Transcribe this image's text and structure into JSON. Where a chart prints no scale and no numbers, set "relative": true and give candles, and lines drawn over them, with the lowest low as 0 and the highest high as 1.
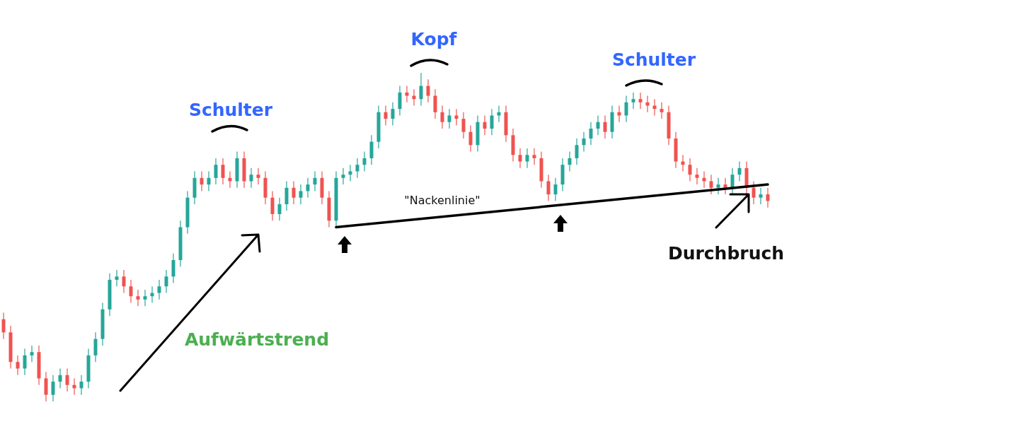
{
  "chart_data": {
    "type": "candlestick",
    "relative": true,
    "categories": [
      null,
      null,
      null,
      null,
      null,
      null,
      null,
      null,
      null,
      null,
      null,
      null,
      null,
      null,
      null,
      null,
      null,
      null,
      null,
      null,
      null,
      null,
      null,
      null,
      null,
      null,
      null,
      null,
      null,
      null,
      null,
      null,
      null,
      null,
      null,
      null,
      null,
      null,
      null,
      null,
      null,
      null,
      null,
      null,
      null,
      null,
      null,
      null,
      null,
      null,
      null,
      null,
      null,
      null,
      null,
      null,
      null,
      null,
      null,
      null,
      null,
      null,
      null,
      null,
      null,
      null,
      null,
      null,
      null,
      null,
      null,
      null,
      null,
      null,
      null,
      null,
      null,
      null,
      null,
      null,
      null,
      null,
      null,
      null,
      null,
      null,
      null,
      null,
      null,
      null,
      null,
      null,
      null,
      null,
      null,
      null,
      null,
      null,
      null,
      null,
      null,
      null,
      null,
      null,
      null,
      null,
      null,
      null,
      null
    ],
    "ohlc": [
      [
        0.25,
        0.27,
        0.19,
        0.21
      ],
      [
        0.21,
        0.23,
        0.1,
        0.12
      ],
      [
        0.12,
        0.14,
        0.08,
        0.1
      ],
      [
        0.1,
        0.16,
        0.08,
        0.14
      ],
      [
        0.14,
        0.17,
        0.12,
        0.15
      ],
      [
        0.15,
        0.17,
        0.05,
        0.07
      ],
      [
        0.07,
        0.09,
        0.0,
        0.02
      ],
      [
        0.02,
        0.08,
        0.0,
        0.06
      ],
      [
        0.06,
        0.1,
        0.04,
        0.08
      ],
      [
        0.08,
        0.1,
        0.03,
        0.05
      ],
      [
        0.05,
        0.07,
        0.02,
        0.04
      ],
      [
        0.04,
        0.08,
        0.02,
        0.06
      ],
      [
        0.06,
        0.16,
        0.04,
        0.14
      ],
      [
        0.14,
        0.21,
        0.12,
        0.19
      ],
      [
        0.19,
        0.3,
        0.17,
        0.28
      ],
      [
        0.28,
        0.39,
        0.26,
        0.37
      ],
      [
        0.37,
        0.4,
        0.35,
        0.38
      ],
      [
        0.38,
        0.4,
        0.33,
        0.35
      ],
      [
        0.35,
        0.37,
        0.3,
        0.32
      ],
      [
        0.32,
        0.34,
        0.29,
        0.31
      ],
      [
        0.31,
        0.34,
        0.29,
        0.32
      ],
      [
        0.32,
        0.35,
        0.3,
        0.33
      ],
      [
        0.33,
        0.37,
        0.31,
        0.35
      ],
      [
        0.35,
        0.4,
        0.33,
        0.38
      ],
      [
        0.38,
        0.45,
        0.36,
        0.43
      ],
      [
        0.43,
        0.55,
        0.41,
        0.53
      ],
      [
        0.53,
        0.64,
        0.51,
        0.62
      ],
      [
        0.62,
        0.7,
        0.6,
        0.68
      ],
      [
        0.68,
        0.7,
        0.64,
        0.66
      ],
      [
        0.66,
        0.7,
        0.64,
        0.68
      ],
      [
        0.68,
        0.74,
        0.66,
        0.72
      ],
      [
        0.72,
        0.74,
        0.66,
        0.68
      ],
      [
        0.68,
        0.7,
        0.65,
        0.67
      ],
      [
        0.67,
        0.76,
        0.65,
        0.74
      ],
      [
        0.74,
        0.76,
        0.65,
        0.67
      ],
      [
        0.67,
        0.71,
        0.65,
        0.69
      ],
      [
        0.69,
        0.71,
        0.66,
        0.68
      ],
      [
        0.68,
        0.7,
        0.6,
        0.62
      ],
      [
        0.62,
        0.64,
        0.55,
        0.57
      ],
      [
        0.57,
        0.62,
        0.55,
        0.6
      ],
      [
        0.6,
        0.67,
        0.58,
        0.65
      ],
      [
        0.65,
        0.67,
        0.6,
        0.62
      ],
      [
        0.62,
        0.66,
        0.6,
        0.64
      ],
      [
        0.64,
        0.68,
        0.62,
        0.66
      ],
      [
        0.66,
        0.7,
        0.64,
        0.68
      ],
      [
        0.68,
        0.7,
        0.6,
        0.62
      ],
      [
        0.62,
        0.64,
        0.53,
        0.55
      ],
      [
        0.55,
        0.7,
        0.53,
        0.68
      ],
      [
        0.68,
        0.71,
        0.66,
        0.69
      ],
      [
        0.69,
        0.72,
        0.67,
        0.7
      ],
      [
        0.7,
        0.74,
        0.68,
        0.72
      ],
      [
        0.72,
        0.76,
        0.7,
        0.74
      ],
      [
        0.74,
        0.81,
        0.72,
        0.79
      ],
      [
        0.79,
        0.9,
        0.77,
        0.88
      ],
      [
        0.88,
        0.9,
        0.84,
        0.86
      ],
      [
        0.86,
        0.91,
        0.84,
        0.89
      ],
      [
        0.89,
        0.96,
        0.87,
        0.94
      ],
      [
        0.94,
        0.96,
        0.91,
        0.93
      ],
      [
        0.93,
        0.95,
        0.9,
        0.92
      ],
      [
        0.92,
        1.0,
        0.9,
        0.96
      ],
      [
        0.96,
        0.98,
        0.91,
        0.93
      ],
      [
        0.93,
        0.95,
        0.86,
        0.88
      ],
      [
        0.88,
        0.9,
        0.83,
        0.85
      ],
      [
        0.85,
        0.89,
        0.83,
        0.87
      ],
      [
        0.87,
        0.89,
        0.84,
        0.86
      ],
      [
        0.86,
        0.88,
        0.8,
        0.82
      ],
      [
        0.82,
        0.84,
        0.76,
        0.78
      ],
      [
        0.78,
        0.87,
        0.76,
        0.85
      ],
      [
        0.85,
        0.87,
        0.81,
        0.83
      ],
      [
        0.83,
        0.89,
        0.81,
        0.87
      ],
      [
        0.87,
        0.9,
        0.85,
        0.88
      ],
      [
        0.88,
        0.9,
        0.79,
        0.81
      ],
      [
        0.81,
        0.83,
        0.73,
        0.75
      ],
      [
        0.75,
        0.77,
        0.71,
        0.73
      ],
      [
        0.73,
        0.77,
        0.71,
        0.75
      ],
      [
        0.75,
        0.77,
        0.72,
        0.74
      ],
      [
        0.74,
        0.76,
        0.65,
        0.67
      ],
      [
        0.67,
        0.69,
        0.61,
        0.63
      ],
      [
        0.63,
        0.68,
        0.61,
        0.66
      ],
      [
        0.66,
        0.74,
        0.64,
        0.72
      ],
      [
        0.72,
        0.76,
        0.7,
        0.74
      ],
      [
        0.74,
        0.8,
        0.72,
        0.78
      ],
      [
        0.78,
        0.82,
        0.76,
        0.8
      ],
      [
        0.8,
        0.85,
        0.78,
        0.83
      ],
      [
        0.83,
        0.87,
        0.81,
        0.85
      ],
      [
        0.85,
        0.87,
        0.8,
        0.82
      ],
      [
        0.82,
        0.9,
        0.8,
        0.88
      ],
      [
        0.88,
        0.9,
        0.85,
        0.87
      ],
      [
        0.87,
        0.93,
        0.85,
        0.91
      ],
      [
        0.91,
        0.94,
        0.89,
        0.92
      ],
      [
        0.92,
        0.94,
        0.89,
        0.91
      ],
      [
        0.91,
        0.93,
        0.88,
        0.9
      ],
      [
        0.9,
        0.92,
        0.87,
        0.89
      ],
      [
        0.89,
        0.91,
        0.86,
        0.88
      ],
      [
        0.88,
        0.9,
        0.78,
        0.8
      ],
      [
        0.8,
        0.82,
        0.71,
        0.73
      ],
      [
        0.73,
        0.75,
        0.7,
        0.72
      ],
      [
        0.72,
        0.74,
        0.67,
        0.69
      ],
      [
        0.69,
        0.71,
        0.66,
        0.68
      ],
      [
        0.68,
        0.7,
        0.65,
        0.67
      ],
      [
        0.67,
        0.69,
        0.63,
        0.65
      ],
      [
        0.65,
        0.68,
        0.63,
        0.66
      ],
      [
        0.66,
        0.68,
        0.63,
        0.65
      ],
      [
        0.65,
        0.71,
        0.63,
        0.69
      ],
      [
        0.69,
        0.73,
        0.67,
        0.71
      ],
      [
        0.71,
        0.73,
        0.63,
        0.65
      ],
      [
        0.65,
        0.67,
        0.6,
        0.62
      ],
      [
        0.62,
        0.65,
        0.6,
        0.63
      ],
      [
        0.63,
        0.65,
        0.59,
        0.61
      ]
    ],
    "series": [
      {
        "type": "line",
        "color": "#000000",
        "values": [
          null,
          null,
          null,
          null,
          null,
          null,
          null,
          null,
          null,
          null,
          null,
          null,
          null,
          null,
          null,
          null,
          null,
          null,
          null,
          null,
          null,
          null,
          null,
          null,
          null,
          null,
          null,
          null,
          null,
          null,
          null,
          null,
          null,
          null,
          null,
          null,
          null,
          null,
          null,
          null,
          null,
          null,
          null,
          null,
          null,
          null,
          null,
          0.53,
          null,
          null,
          null,
          null,
          null,
          null,
          null,
          null,
          null,
          null,
          null,
          null,
          null,
          null,
          null,
          null,
          null,
          null,
          null,
          null,
          null,
          null,
          null,
          null,
          null,
          null,
          null,
          null,
          null,
          null,
          null,
          null,
          null,
          null,
          null,
          null,
          null,
          null,
          null,
          null,
          null,
          null,
          null,
          null,
          null,
          null,
          null,
          null,
          null,
          null,
          null,
          null,
          null,
          null,
          null,
          null,
          null,
          null,
          null,
          null,
          0.66
        ]
      }
    ],
    "annotations": [
      "Schulter",
      "Kopf",
      "Schulter",
      "\"Nackenlinie\"",
      "Aufwärtstrend",
      "Durchbruch"
    ]
  }
}
